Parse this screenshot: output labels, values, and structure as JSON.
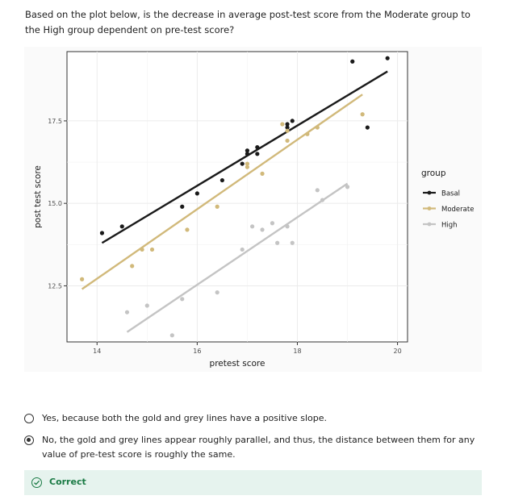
{
  "question": {
    "text": "Based on the plot below, is the decrease in average post-test score from the Moderate group to the High group dependent on pre-test score?"
  },
  "chart_data": {
    "type": "scatter",
    "xlabel": "pretest score",
    "ylabel": "post test score",
    "xlim": [
      13.4,
      20.2
    ],
    "ylim": [
      10.8,
      19.6
    ],
    "x_ticks": [
      14,
      16,
      18,
      20
    ],
    "y_ticks": [
      12.5,
      15.0,
      17.5
    ],
    "x_tick_labels": [
      "14",
      "16",
      "18",
      "20"
    ],
    "y_tick_labels": [
      "12.5",
      "15.0",
      "17.5"
    ],
    "grid": true,
    "legend_title": "group",
    "legend_position": "right",
    "series": [
      {
        "name": "Basal",
        "color": "#1a1a1a",
        "points": [
          [
            14.1,
            14.1
          ],
          [
            14.5,
            14.3
          ],
          [
            15.7,
            14.9
          ],
          [
            16.0,
            15.3
          ],
          [
            16.5,
            15.7
          ],
          [
            16.9,
            16.2
          ],
          [
            17.0,
            16.5
          ],
          [
            17.0,
            16.6
          ],
          [
            17.2,
            16.5
          ],
          [
            17.2,
            16.7
          ],
          [
            17.8,
            17.3
          ],
          [
            17.8,
            17.4
          ],
          [
            17.9,
            17.5
          ],
          [
            19.1,
            19.3
          ],
          [
            19.4,
            17.3
          ],
          [
            19.8,
            19.4
          ]
        ],
        "fit": [
          [
            14.1,
            13.8
          ],
          [
            19.8,
            19.0
          ]
        ]
      },
      {
        "name": "Moderate",
        "color": "#d1b97a",
        "points": [
          [
            13.7,
            12.7
          ],
          [
            14.7,
            13.1
          ],
          [
            14.9,
            13.6
          ],
          [
            15.1,
            13.6
          ],
          [
            15.8,
            14.2
          ],
          [
            16.4,
            14.9
          ],
          [
            17.0,
            16.2
          ],
          [
            17.0,
            16.1
          ],
          [
            17.3,
            15.9
          ],
          [
            17.7,
            17.4
          ],
          [
            17.8,
            17.2
          ],
          [
            17.8,
            16.9
          ],
          [
            18.2,
            17.1
          ],
          [
            18.4,
            17.3
          ],
          [
            19.3,
            17.7
          ]
        ],
        "fit": [
          [
            13.7,
            12.4
          ],
          [
            19.3,
            18.3
          ]
        ]
      },
      {
        "name": "High",
        "color": "#c4c4c4",
        "points": [
          [
            14.6,
            11.7
          ],
          [
            15.0,
            11.9
          ],
          [
            15.5,
            11.0
          ],
          [
            15.7,
            12.1
          ],
          [
            16.4,
            12.3
          ],
          [
            16.9,
            13.6
          ],
          [
            17.1,
            14.3
          ],
          [
            17.3,
            14.2
          ],
          [
            17.5,
            14.4
          ],
          [
            17.6,
            13.8
          ],
          [
            17.8,
            14.3
          ],
          [
            17.9,
            13.8
          ],
          [
            18.4,
            15.4
          ],
          [
            18.5,
            15.1
          ],
          [
            19.0,
            15.5
          ]
        ],
        "fit": [
          [
            14.6,
            11.1
          ],
          [
            19.0,
            15.6
          ]
        ]
      }
    ]
  },
  "options": [
    {
      "text": "Yes, because both the gold and grey lines have a positive slope.",
      "selected": false
    },
    {
      "text": "No, the gold and grey lines appear roughly parallel, and thus, the distance between them for any value of pre-test score is roughly the same.",
      "selected": true
    }
  ],
  "feedback": {
    "label": "Correct",
    "icon": "check-circle-icon",
    "color": "#1a7a44",
    "background": "#e6f3ee"
  }
}
